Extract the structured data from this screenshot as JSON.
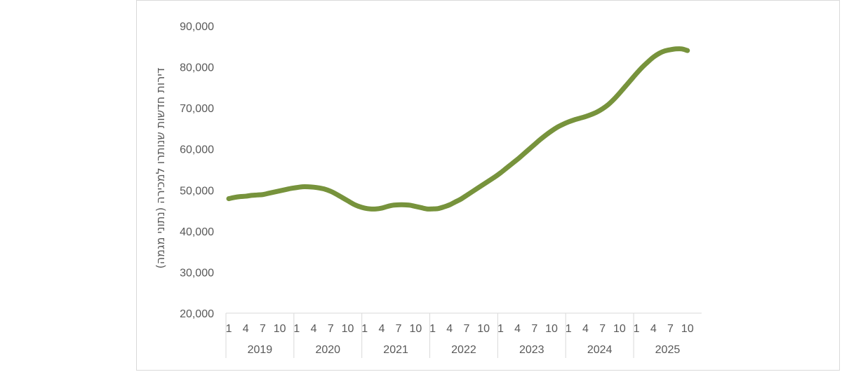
{
  "chart_data": {
    "type": "line",
    "title": "",
    "xlabel": "",
    "ylabel": "דירות חדשות שנותרו למכירה (נתוני מגמה)",
    "ylim": [
      20000,
      90000
    ],
    "yticks": [
      "20,000",
      "30,000",
      "40,000",
      "50,000",
      "60,000",
      "70,000",
      "80,000",
      "90,000"
    ],
    "ytick_values": [
      20000,
      30000,
      40000,
      50000,
      60000,
      70000,
      80000,
      90000
    ],
    "years": [
      "2019",
      "2020",
      "2021",
      "2022",
      "2023",
      "2024",
      "2025"
    ],
    "month_ticks": [
      "1",
      "4",
      "7",
      "10"
    ],
    "grid": false,
    "series": [
      {
        "name": "דירות חדשות שנותרו למכירה",
        "color": "#77933C",
        "start": "2019-01",
        "frequency": "monthly",
        "values": [
          47900,
          48200,
          48400,
          48500,
          48700,
          48800,
          48900,
          49200,
          49500,
          49800,
          50100,
          50400,
          50600,
          50800,
          50800,
          50700,
          50500,
          50200,
          49700,
          49000,
          48200,
          47400,
          46600,
          46000,
          45600,
          45400,
          45400,
          45600,
          46000,
          46300,
          46400,
          46400,
          46300,
          46000,
          45700,
          45400,
          45400,
          45500,
          45900,
          46400,
          47100,
          47800,
          48700,
          49600,
          50500,
          51400,
          52300,
          53200,
          54200,
          55300,
          56400,
          57500,
          58700,
          59900,
          61100,
          62300,
          63400,
          64400,
          65300,
          66000,
          66600,
          67100,
          67500,
          67900,
          68400,
          69000,
          69800,
          70800,
          72100,
          73600,
          75200,
          76800,
          78400,
          79900,
          81200,
          82400,
          83300,
          83900,
          84200,
          84400,
          84400,
          84000
        ]
      }
    ]
  }
}
